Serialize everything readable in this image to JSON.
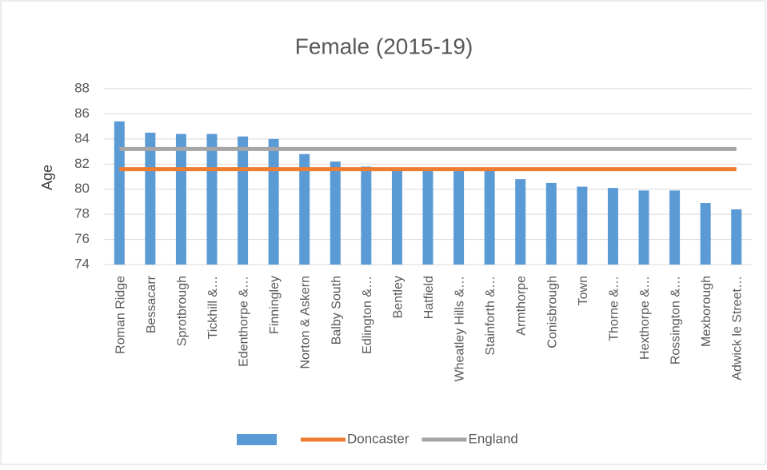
{
  "chart_data": {
    "type": "bar",
    "title": "Female (2015-19)",
    "y_label": "Age",
    "categories": [
      "Roman Ridge",
      "Bessacarr",
      "Sprotbrough",
      "Tickhill &…",
      "Edenthorpe &…",
      "Finningley",
      "Norton & Askern",
      "Balby South",
      "Edlington &…",
      "Bentley",
      "Hatfield",
      "Wheatley Hills &…",
      "Stainforth &…",
      "Armthorpe",
      "Conisbrough",
      "Town",
      "Thorne &…",
      "Hexthorpe &…",
      "Rossington &…",
      "Mexborough",
      "Adwick le Street…"
    ],
    "series": [
      {
        "type": "bar",
        "color": "#5b9bd5",
        "values": [
          85.4,
          84.5,
          84.4,
          84.4,
          84.2,
          84.0,
          82.8,
          82.2,
          81.8,
          81.6,
          81.6,
          81.5,
          81.5,
          80.8,
          80.5,
          80.2,
          80.1,
          79.9,
          79.9,
          78.9,
          78.4
        ]
      },
      {
        "type": "line",
        "name": "Doncaster",
        "color": "#ed7d31",
        "values": [
          81.6,
          81.6,
          81.6,
          81.6,
          81.6,
          81.6,
          81.6,
          81.6,
          81.6,
          81.6,
          81.6,
          81.6,
          81.6,
          81.6,
          81.6,
          81.6,
          81.6,
          81.6,
          81.6,
          81.6,
          81.6
        ]
      },
      {
        "type": "line",
        "name": "England",
        "color": "#a5a5a5",
        "values": [
          83.2,
          83.2,
          83.2,
          83.2,
          83.2,
          83.2,
          83.2,
          83.2,
          83.2,
          83.2,
          83.2,
          83.2,
          83.2,
          83.2,
          83.2,
          83.2,
          83.2,
          83.2,
          83.2,
          83.2,
          83.2
        ]
      }
    ],
    "ylim": [
      74,
      88
    ],
    "yticks": [
      74,
      76,
      78,
      80,
      82,
      84,
      86,
      88
    ],
    "grid": true,
    "legend": "bottom"
  }
}
